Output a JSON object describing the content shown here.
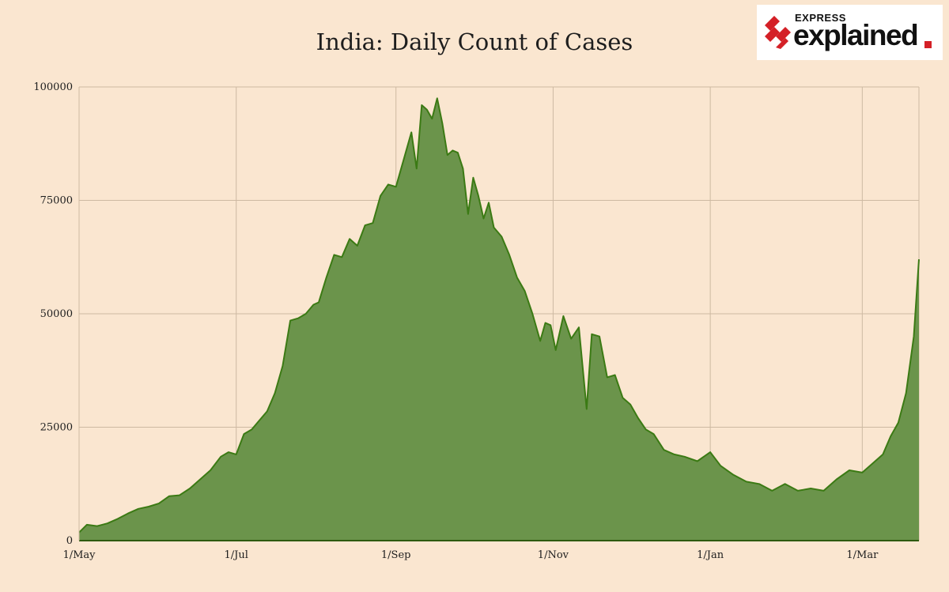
{
  "brand": {
    "name_small": "EXPRESS",
    "name_large": "explained",
    "accent_color": "#d42027"
  },
  "chart_data": {
    "type": "area",
    "title": "India: Daily Count of Cases",
    "xlabel": "",
    "ylabel": "",
    "x_range": [
      "2020-05-01",
      "2021-03-23"
    ],
    "ylim": [
      0,
      100000
    ],
    "y_ticks": [
      0,
      25000,
      50000,
      75000,
      100000
    ],
    "y_tick_labels": [
      "0",
      "25000",
      "50000",
      "75000",
      "100000"
    ],
    "x_tick_labels": [
      {
        "date": "2020-05-01",
        "label": "1/May"
      },
      {
        "date": "2020-07-01",
        "label": "1/Jul"
      },
      {
        "date": "2020-09-01",
        "label": "1/Sep"
      },
      {
        "date": "2020-11-01",
        "label": "1/Nov"
      },
      {
        "date": "2021-01-01",
        "label": "1/Jan"
      },
      {
        "date": "2021-03-01",
        "label": "1/Mar"
      }
    ],
    "grid": true,
    "fill_color": "#6b944b",
    "line_color": "#3b7a14",
    "series": [
      {
        "x": [
          "2020-05-01",
          "2020-05-04",
          "2020-05-08",
          "2020-05-12",
          "2020-05-16",
          "2020-05-20",
          "2020-05-24",
          "2020-05-28",
          "2020-06-01",
          "2020-06-05",
          "2020-06-09",
          "2020-06-13",
          "2020-06-17",
          "2020-06-21",
          "2020-06-25",
          "2020-06-28",
          "2020-07-01",
          "2020-07-04",
          "2020-07-07",
          "2020-07-10",
          "2020-07-13",
          "2020-07-16",
          "2020-07-19",
          "2020-07-22",
          "2020-07-25",
          "2020-07-28",
          "2020-07-31",
          "2020-08-02",
          "2020-08-05",
          "2020-08-08",
          "2020-08-11",
          "2020-08-14",
          "2020-08-17",
          "2020-08-20",
          "2020-08-23",
          "2020-08-26",
          "2020-08-29",
          "2020-09-01",
          "2020-09-04",
          "2020-09-07",
          "2020-09-09",
          "2020-09-11",
          "2020-09-13",
          "2020-09-15",
          "2020-09-17",
          "2020-09-19",
          "2020-09-21",
          "2020-09-23",
          "2020-09-25",
          "2020-09-27",
          "2020-09-29",
          "2020-10-01",
          "2020-10-03",
          "2020-10-05",
          "2020-10-07",
          "2020-10-09",
          "2020-10-12",
          "2020-10-15",
          "2020-10-18",
          "2020-10-21",
          "2020-10-24",
          "2020-10-27",
          "2020-10-29",
          "2020-10-31",
          "2020-11-02",
          "2020-11-05",
          "2020-11-08",
          "2020-11-11",
          "2020-11-14",
          "2020-11-16",
          "2020-11-19",
          "2020-11-22",
          "2020-11-25",
          "2020-11-28",
          "2020-12-01",
          "2020-12-04",
          "2020-12-07",
          "2020-12-10",
          "2020-12-14",
          "2020-12-18",
          "2020-12-22",
          "2020-12-27",
          "2021-01-01",
          "2021-01-05",
          "2021-01-10",
          "2021-01-15",
          "2021-01-20",
          "2021-01-25",
          "2021-01-30",
          "2021-02-04",
          "2021-02-09",
          "2021-02-14",
          "2021-02-19",
          "2021-02-24",
          "2021-03-01",
          "2021-03-05",
          "2021-03-09",
          "2021-03-12",
          "2021-03-15",
          "2021-03-18",
          "2021-03-21",
          "2021-03-23"
        ],
        "y": [
          1800,
          3500,
          3200,
          3800,
          4800,
          6000,
          7000,
          7500,
          8200,
          9800,
          10000,
          11500,
          13500,
          15500,
          18500,
          19500,
          19000,
          23500,
          24500,
          26500,
          28500,
          32500,
          38500,
          48500,
          49000,
          50000,
          52000,
          52500,
          58000,
          63000,
          62500,
          66500,
          65000,
          69500,
          70000,
          76000,
          78500,
          78000,
          84000,
          90000,
          82000,
          96000,
          95000,
          93000,
          97500,
          92000,
          85000,
          86000,
          85500,
          82000,
          72000,
          80000,
          76000,
          71000,
          74500,
          69000,
          67000,
          63000,
          58000,
          55000,
          50000,
          44000,
          48000,
          47500,
          42000,
          49500,
          44500,
          47000,
          29000,
          45500,
          45000,
          36000,
          36500,
          31500,
          30000,
          27000,
          24500,
          23500,
          20000,
          19000,
          18500,
          17500,
          19500,
          16500,
          14500,
          13000,
          12500,
          11000,
          12500,
          11000,
          11500,
          11000,
          13500,
          15500,
          15000,
          17000,
          19000,
          23000,
          26000,
          32500,
          45000,
          62000
        ]
      }
    ]
  }
}
